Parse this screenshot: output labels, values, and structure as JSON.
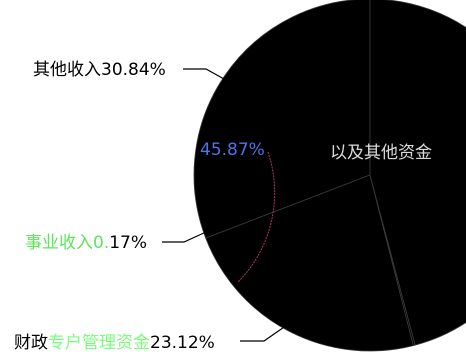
{
  "chart_data": {
    "type": "pie",
    "title": "",
    "slices": [
      {
        "label": "其他收入30.84%",
        "name": "其他收入",
        "value": 30.84,
        "color": "#000000"
      },
      {
        "label": "财政专户管理资金23.12%",
        "name": "财政专户管理资金",
        "value": 23.12,
        "color": "#000000"
      },
      {
        "label": "事业收入0.17%",
        "name": "事业收入",
        "value": 0.17,
        "color": "#000000"
      },
      {
        "label": "45.87%",
        "name": "",
        "value": 45.87,
        "color": "#000000"
      }
    ],
    "label_colors": {
      "other": "#000000",
      "fiscal_prefix": "#7CFC7C",
      "business_prefix": "#5CE65C",
      "main_pct": "#4d74e8"
    },
    "line_color": "#000000",
    "overlap_text": "以及其他资金"
  }
}
